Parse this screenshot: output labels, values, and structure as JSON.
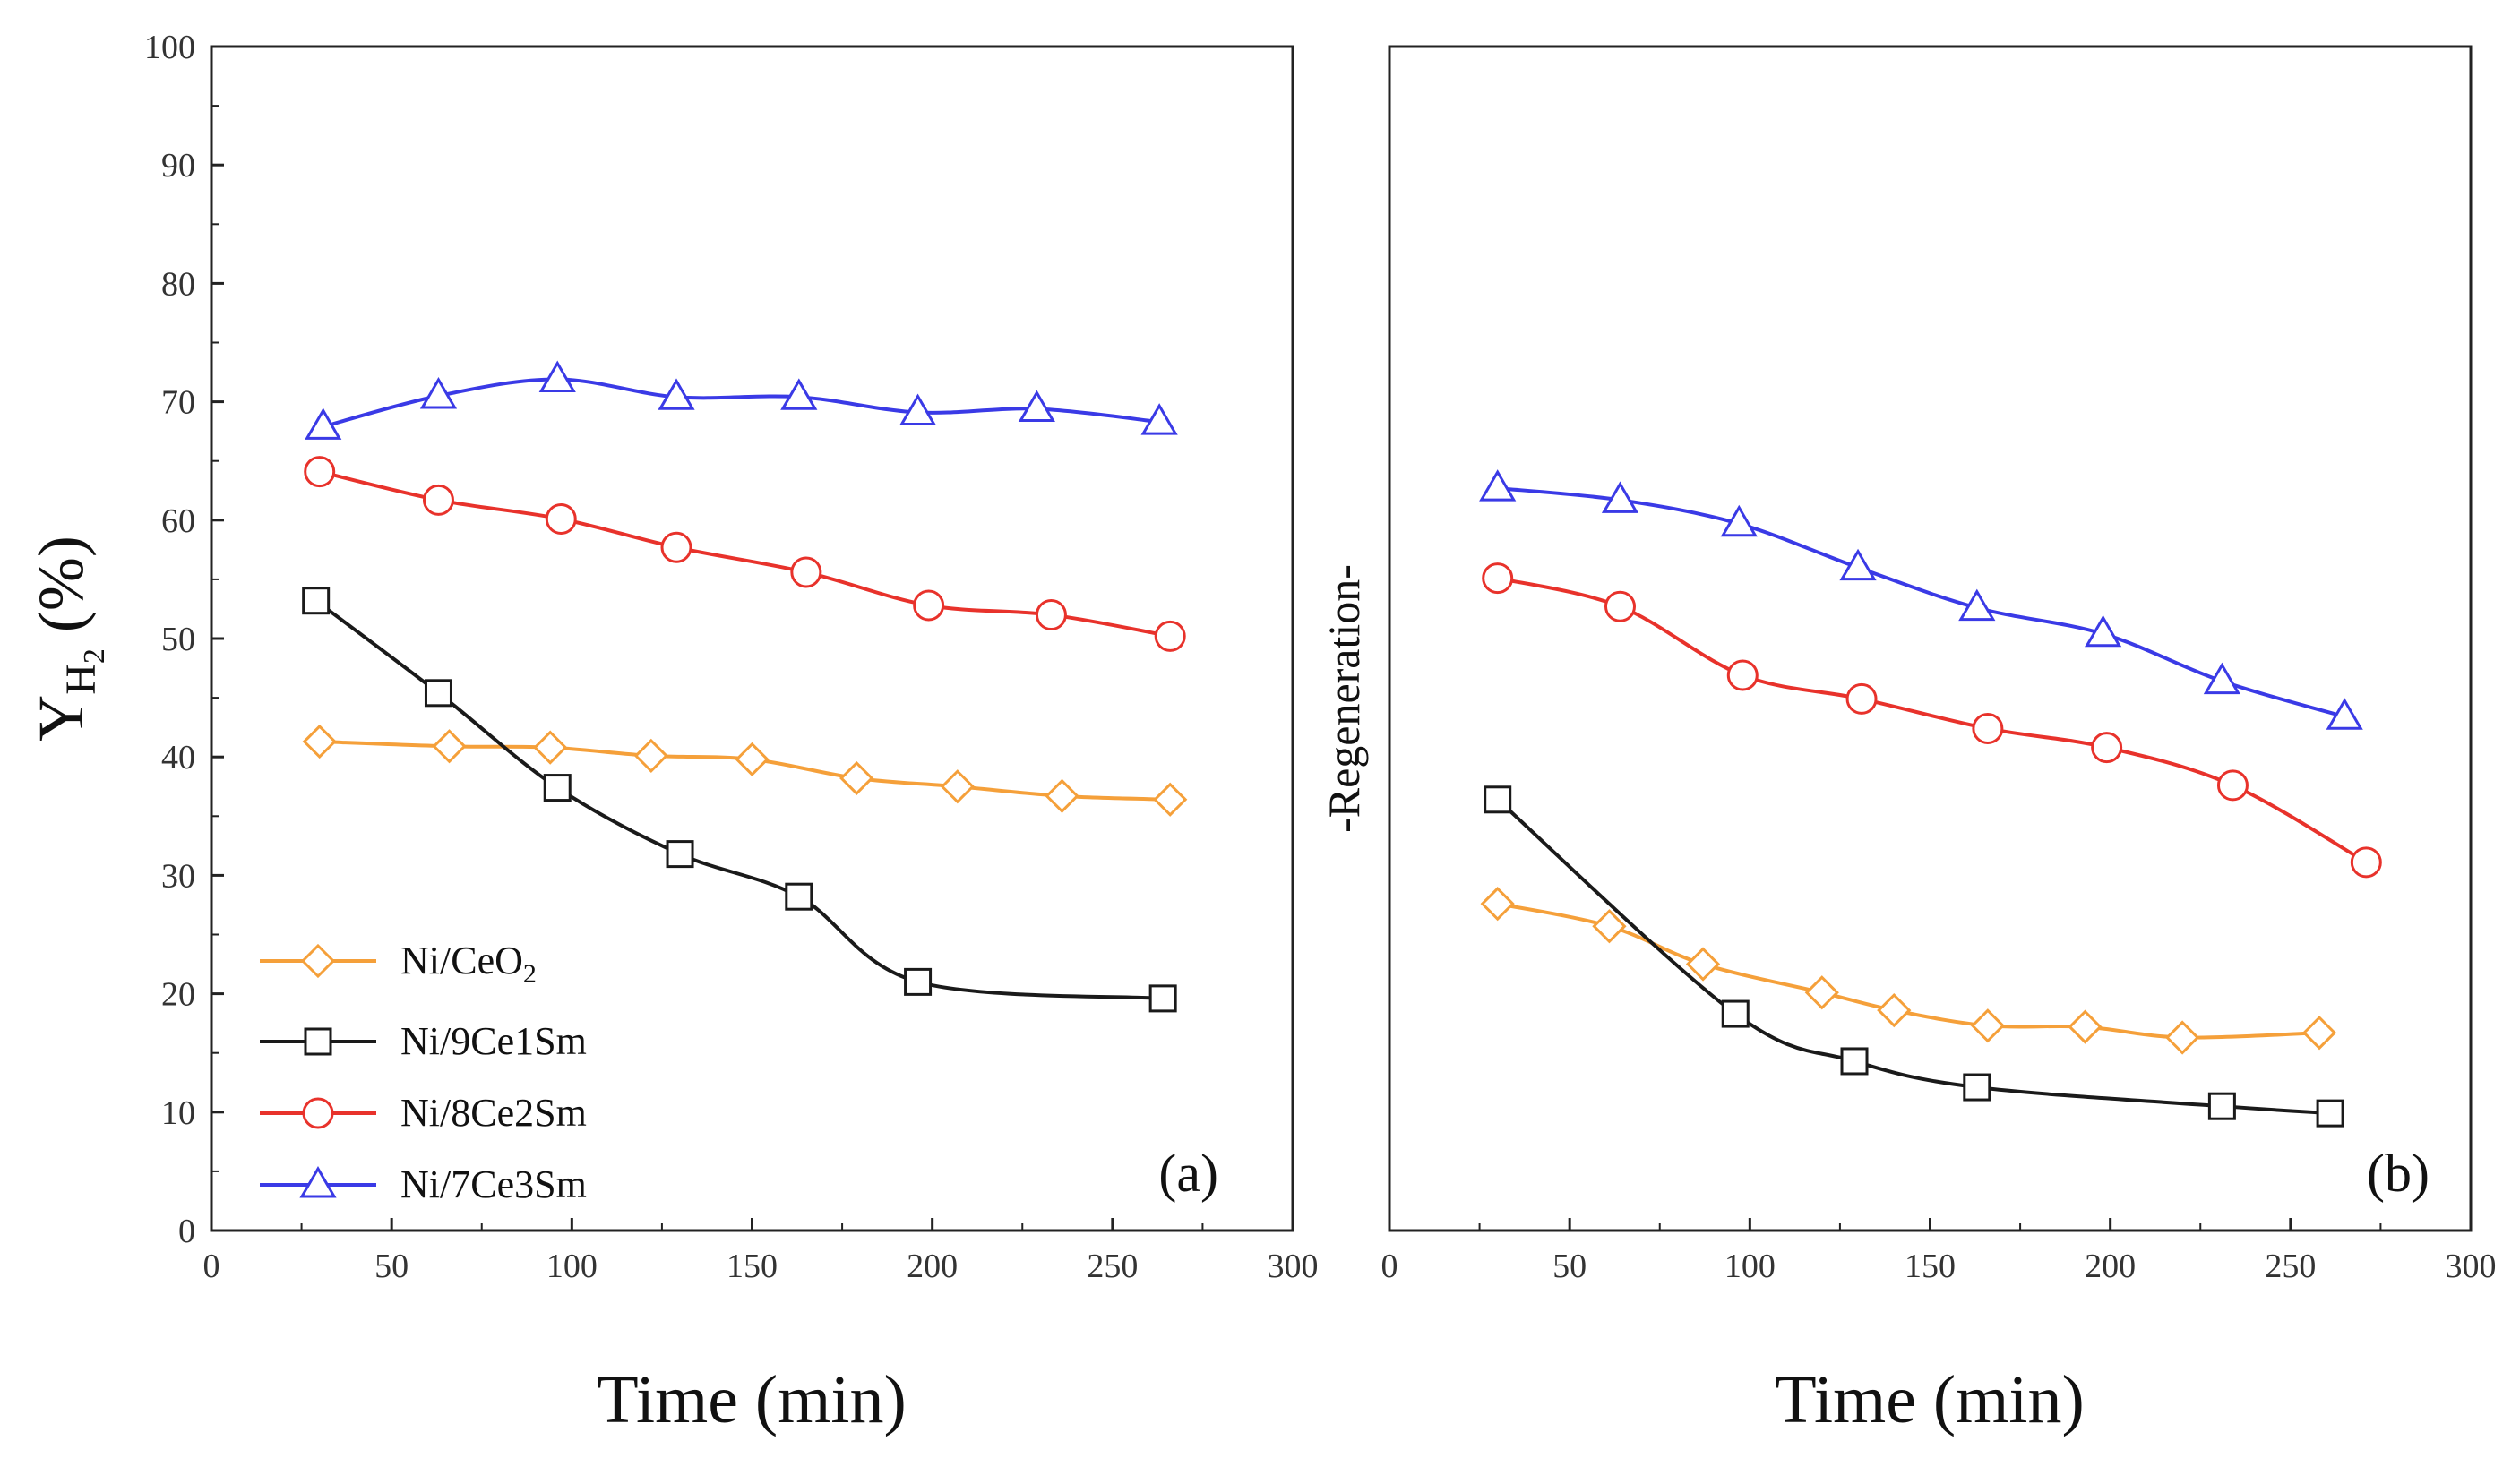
{
  "chart_data": [
    {
      "panel": "a",
      "type": "line",
      "panel_label": "(a)",
      "xlabel": "Time (min)",
      "ylabel": {
        "symbol": "Y",
        "subscript": "H",
        "subsubscript": "2",
        "unit": " (%)"
      },
      "xlim": [
        0,
        300
      ],
      "ylim": [
        0,
        100
      ],
      "xticks": [
        0,
        50,
        100,
        150,
        200,
        250,
        300
      ],
      "yticks": [
        0,
        10,
        20,
        30,
        40,
        50,
        60,
        70,
        80,
        90,
        100
      ],
      "legend": {
        "position": "bottom-left",
        "entries": [
          "Ni/CeO2",
          "Ni/9Ce1Sm",
          "Ni/8Ce2Sm",
          "Ni/7Ce3Sm"
        ]
      },
      "series": [
        {
          "name": "Ni/CeO2",
          "label_main": "Ni/CeO",
          "label_sub": "2",
          "color": "#F5A03A",
          "marker": "diamond",
          "x": [
            30,
            66,
            94,
            122,
            150,
            179,
            207,
            236,
            266
          ],
          "y": [
            41.3,
            40.9,
            40.8,
            40.1,
            39.8,
            38.2,
            37.5,
            36.7,
            36.4
          ]
        },
        {
          "name": "Ni/9Ce1Sm",
          "color": "#1A1A1A",
          "marker": "square",
          "x": [
            29,
            63,
            96,
            130,
            163,
            196,
            264
          ],
          "y": [
            53.2,
            45.4,
            37.4,
            31.8,
            28.2,
            21.0,
            19.6
          ]
        },
        {
          "name": "Ni/8Ce2Sm",
          "color": "#E8322B",
          "marker": "circle",
          "x": [
            30,
            63,
            97,
            129,
            165,
            199,
            233,
            266
          ],
          "y": [
            64.1,
            61.7,
            60.1,
            57.7,
            55.6,
            52.8,
            52.0,
            50.2
          ]
        },
        {
          "name": "Ni/7Ce3Sm",
          "color": "#3A3AE6",
          "marker": "triangle",
          "x": [
            31,
            63,
            96,
            129,
            163,
            196,
            229,
            263
          ],
          "y": [
            67.9,
            70.5,
            71.9,
            70.4,
            70.4,
            69.1,
            69.4,
            68.3
          ]
        }
      ]
    },
    {
      "panel": "b",
      "type": "line",
      "panel_label": "(b)",
      "side_label": "-Regeneration-",
      "xlabel": "Time (min)",
      "xlim": [
        0,
        300
      ],
      "ylim": [
        0,
        100
      ],
      "xticks": [
        0,
        50,
        100,
        150,
        200,
        250,
        300
      ],
      "series": [
        {
          "name": "Ni/CeO2",
          "color": "#F5A03A",
          "marker": "diamond",
          "x": [
            30,
            61,
            87,
            120,
            140,
            166,
            193,
            220,
            258
          ],
          "y": [
            27.6,
            25.7,
            22.5,
            20.1,
            18.6,
            17.3,
            17.2,
            16.3,
            16.7
          ]
        },
        {
          "name": "Ni/9Ce1Sm",
          "color": "#1A1A1A",
          "marker": "square",
          "x": [
            30,
            96,
            129,
            163,
            231,
            261
          ],
          "y": [
            36.4,
            18.3,
            14.3,
            12.1,
            10.5,
            9.9
          ]
        },
        {
          "name": "Ni/8Ce2Sm",
          "color": "#E8322B",
          "marker": "circle",
          "x": [
            30,
            64,
            98,
            131,
            166,
            199,
            234,
            271
          ],
          "y": [
            55.1,
            52.7,
            46.9,
            44.9,
            42.4,
            40.8,
            37.6,
            31.1
          ]
        },
        {
          "name": "Ni/7Ce3Sm",
          "color": "#3A3AE6",
          "marker": "triangle",
          "x": [
            30,
            64,
            97,
            130,
            163,
            198,
            231,
            265
          ],
          "y": [
            62.7,
            61.7,
            59.7,
            56.0,
            52.6,
            50.4,
            46.4,
            43.4
          ]
        }
      ]
    }
  ]
}
